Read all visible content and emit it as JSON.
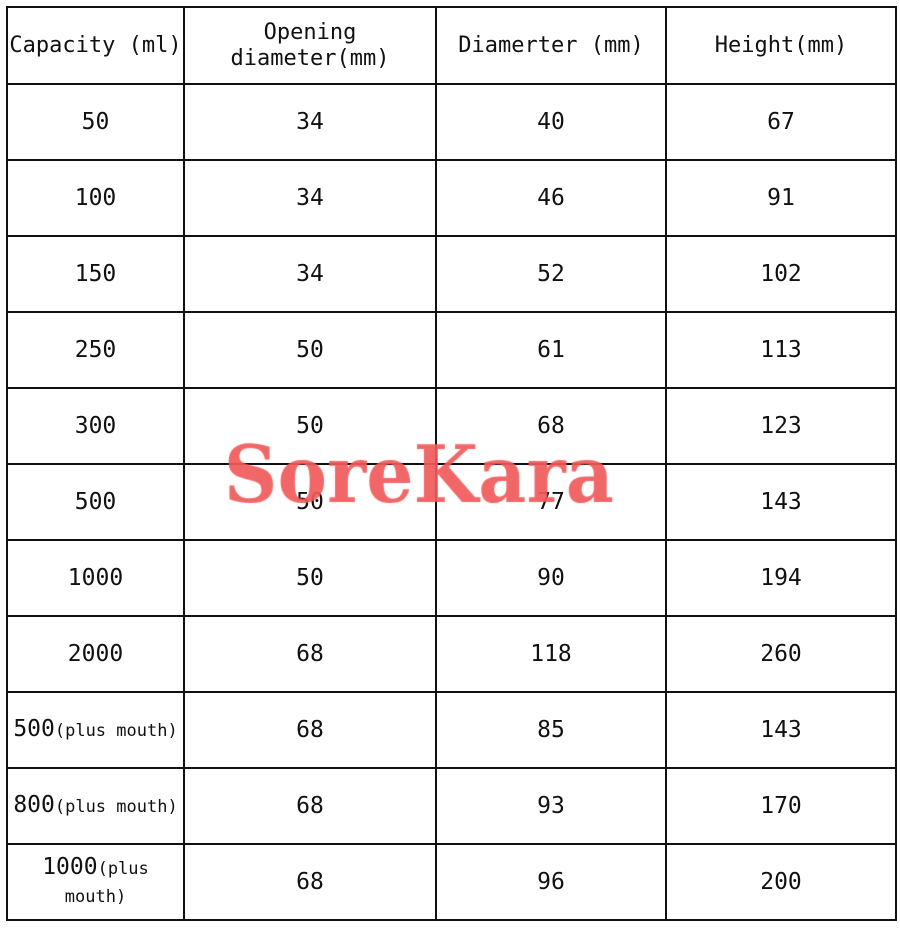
{
  "headers": [
    "Capacity (ml)",
    "Opening diameter(mm)",
    "Diamerter (mm)",
    "Height(mm)"
  ],
  "rows": [
    {
      "capacity": "50",
      "capacity_note": "",
      "opening": "34",
      "diameter": "40",
      "height": "67"
    },
    {
      "capacity": "100",
      "capacity_note": "",
      "opening": "34",
      "diameter": "46",
      "height": "91"
    },
    {
      "capacity": "150",
      "capacity_note": "",
      "opening": "34",
      "diameter": "52",
      "height": "102"
    },
    {
      "capacity": "250",
      "capacity_note": "",
      "opening": "50",
      "diameter": "61",
      "height": "113"
    },
    {
      "capacity": "300",
      "capacity_note": "",
      "opening": "50",
      "diameter": "68",
      "height": "123"
    },
    {
      "capacity": "500",
      "capacity_note": "",
      "opening": "50",
      "diameter": "77",
      "height": "143"
    },
    {
      "capacity": "1000",
      "capacity_note": "",
      "opening": "50",
      "diameter": "90",
      "height": "194"
    },
    {
      "capacity": "2000",
      "capacity_note": "",
      "opening": "68",
      "diameter": "118",
      "height": "260"
    },
    {
      "capacity": "500",
      "capacity_note": "(plus mouth)",
      "opening": "68",
      "diameter": "85",
      "height": "143"
    },
    {
      "capacity": "800",
      "capacity_note": "(plus mouth)",
      "opening": "68",
      "diameter": "93",
      "height": "170"
    },
    {
      "capacity": "1000",
      "capacity_note": "(plus mouth)",
      "opening": "68",
      "diameter": "96",
      "height": "200"
    }
  ],
  "watermark": {
    "text": "SoreKara",
    "color": "#f05a5a"
  }
}
